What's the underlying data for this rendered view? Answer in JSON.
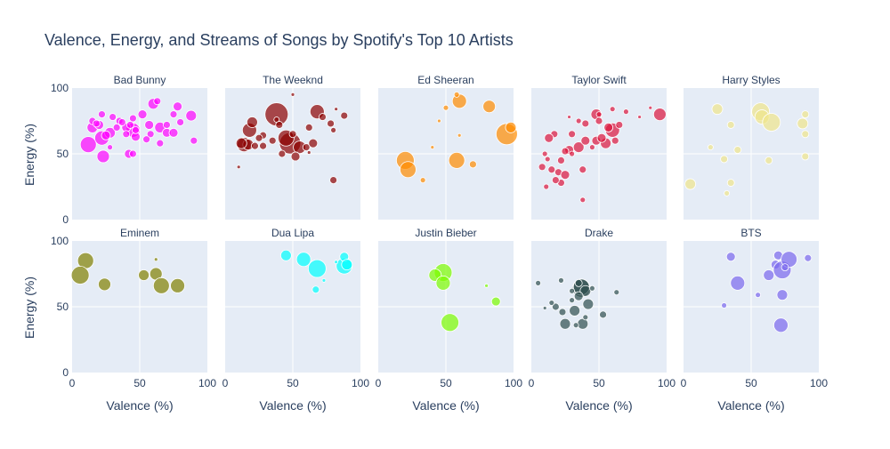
{
  "chart_data": {
    "type": "scatter",
    "title": "Valence, Energy, and Streams of Songs by Spotify's Top 10 Artists",
    "xlabel": "Valence (%)",
    "ylabel": "Energy (%)",
    "xlim": [
      0,
      100
    ],
    "ylim": [
      0,
      100
    ],
    "x_ticks": [
      "0",
      "50",
      "100"
    ],
    "y_ticks": [
      "0",
      "50",
      "100"
    ],
    "grid": true,
    "panels": [
      {
        "name": "Bad Bunny",
        "color": "#ff00ff",
        "points": [
          [
            12,
            57,
            9
          ],
          [
            15,
            70,
            6
          ],
          [
            22,
            62,
            8
          ],
          [
            28,
            66,
            6
          ],
          [
            45,
            68,
            8
          ],
          [
            47,
            63,
            5
          ],
          [
            58,
            65,
            4
          ],
          [
            65,
            70,
            6
          ],
          [
            70,
            66,
            5
          ],
          [
            88,
            79,
            6
          ],
          [
            23,
            48,
            7
          ],
          [
            42,
            50,
            5
          ],
          [
            45,
            50,
            4
          ],
          [
            15,
            75,
            4
          ],
          [
            20,
            72,
            5
          ],
          [
            18,
            73,
            4
          ],
          [
            25,
            64,
            5
          ],
          [
            35,
            75,
            4
          ],
          [
            40,
            70,
            5
          ],
          [
            52,
            80,
            5
          ],
          [
            60,
            88,
            6
          ],
          [
            63,
            90,
            4
          ],
          [
            75,
            80,
            4
          ],
          [
            78,
            86,
            5
          ],
          [
            80,
            74,
            4
          ],
          [
            90,
            60,
            4
          ],
          [
            75,
            66,
            5
          ],
          [
            57,
            72,
            5
          ],
          [
            47,
            68,
            4
          ],
          [
            40,
            65,
            4
          ],
          [
            33,
            70,
            4
          ],
          [
            30,
            78,
            4
          ],
          [
            65,
            58,
            4
          ],
          [
            55,
            61,
            4
          ],
          [
            43,
            72,
            4
          ],
          [
            28,
            55,
            3
          ],
          [
            22,
            80,
            4
          ],
          [
            70,
            72,
            4
          ],
          [
            45,
            77,
            4
          ],
          [
            37,
            74,
            4
          ]
        ]
      },
      {
        "name": "The Weeknd",
        "color": "#8b0000",
        "points": [
          [
            38,
            80,
            13
          ],
          [
            48,
            58,
            12
          ],
          [
            45,
            62,
            9
          ],
          [
            55,
            55,
            7
          ],
          [
            14,
            57,
            8
          ],
          [
            18,
            68,
            8
          ],
          [
            17,
            57,
            6
          ],
          [
            20,
            74,
            6
          ],
          [
            28,
            64,
            4
          ],
          [
            38,
            76,
            3
          ],
          [
            40,
            72,
            4
          ],
          [
            62,
            70,
            4
          ],
          [
            80,
            30,
            4
          ],
          [
            88,
            79,
            4
          ],
          [
            10,
            40,
            2
          ],
          [
            60,
            55,
            4
          ],
          [
            65,
            58,
            5
          ],
          [
            68,
            82,
            8
          ],
          [
            72,
            78,
            4
          ],
          [
            12,
            58,
            6
          ],
          [
            22,
            56,
            4
          ],
          [
            25,
            62,
            4
          ],
          [
            35,
            60,
            4
          ],
          [
            52,
            48,
            5
          ],
          [
            50,
            65,
            4
          ],
          [
            62,
            51,
            2
          ],
          [
            50,
            95,
            2
          ],
          [
            82,
            84,
            2
          ],
          [
            80,
            68,
            3
          ],
          [
            42,
            50,
            4
          ],
          [
            28,
            56,
            4
          ],
          [
            78,
            73,
            4
          ]
        ]
      },
      {
        "name": "Ed Sheeran",
        "color": "#ff8c00",
        "points": [
          [
            20,
            45,
            10
          ],
          [
            22,
            38,
            9
          ],
          [
            58,
            45,
            9
          ],
          [
            60,
            90,
            8
          ],
          [
            82,
            86,
            7
          ],
          [
            95,
            65,
            12
          ],
          [
            98,
            70,
            6
          ],
          [
            70,
            42,
            4
          ],
          [
            50,
            85,
            3
          ],
          [
            33,
            30,
            3
          ],
          [
            45,
            75,
            2
          ],
          [
            60,
            64,
            2
          ],
          [
            58,
            95,
            3
          ],
          [
            40,
            55,
            2
          ]
        ]
      },
      {
        "name": "Taylor Swift",
        "color": "#dc143c",
        "points": [
          [
            95,
            80,
            7
          ],
          [
            60,
            68,
            8
          ],
          [
            55,
            58,
            6
          ],
          [
            48,
            60,
            5
          ],
          [
            52,
            62,
            5
          ],
          [
            48,
            80,
            6
          ],
          [
            57,
            70,
            5
          ],
          [
            65,
            72,
            4
          ],
          [
            35,
            55,
            6
          ],
          [
            28,
            53,
            5
          ],
          [
            25,
            52,
            4
          ],
          [
            22,
            45,
            4
          ],
          [
            20,
            36,
            4
          ],
          [
            15,
            38,
            4
          ],
          [
            12,
            46,
            3
          ],
          [
            11,
            25,
            3
          ],
          [
            8,
            40,
            4
          ],
          [
            17,
            65,
            4
          ],
          [
            13,
            62,
            5
          ],
          [
            25,
            34,
            5
          ],
          [
            22,
            28,
            4
          ],
          [
            18,
            30,
            4
          ],
          [
            30,
            65,
            4
          ],
          [
            38,
            38,
            4
          ],
          [
            40,
            60,
            5
          ],
          [
            40,
            73,
            4
          ],
          [
            50,
            75,
            4
          ],
          [
            62,
            60,
            4
          ],
          [
            60,
            84,
            3
          ],
          [
            70,
            82,
            3
          ],
          [
            80,
            78,
            2
          ],
          [
            88,
            85,
            2
          ],
          [
            50,
            80,
            3
          ],
          [
            45,
            55,
            3
          ],
          [
            35,
            75,
            3
          ],
          [
            30,
            50,
            3
          ],
          [
            28,
            78,
            2
          ],
          [
            10,
            50,
            3
          ],
          [
            38,
            15,
            3
          ]
        ]
      },
      {
        "name": "Harry Styles",
        "color": "#f0e68c",
        "points": [
          [
            57,
            82,
            10
          ],
          [
            58,
            78,
            8
          ],
          [
            65,
            74,
            10
          ],
          [
            88,
            73,
            6
          ],
          [
            90,
            80,
            4
          ],
          [
            90,
            65,
            4
          ],
          [
            90,
            48,
            4
          ],
          [
            25,
            84,
            6
          ],
          [
            5,
            27,
            6
          ],
          [
            35,
            72,
            4
          ],
          [
            30,
            46,
            4
          ],
          [
            40,
            53,
            4
          ],
          [
            63,
            45,
            4
          ],
          [
            35,
            28,
            4
          ],
          [
            32,
            20,
            3
          ],
          [
            20,
            55,
            3
          ]
        ]
      },
      {
        "name": "Eminem",
        "color": "#808000",
        "points": [
          [
            10,
            85,
            9
          ],
          [
            6,
            74,
            10
          ],
          [
            24,
            67,
            7
          ],
          [
            53,
            74,
            6
          ],
          [
            62,
            75,
            7
          ],
          [
            66,
            66,
            9
          ],
          [
            78,
            66,
            8
          ],
          [
            62,
            86,
            2
          ]
        ]
      },
      {
        "name": "Dua Lipa",
        "color": "#00ffff",
        "points": [
          [
            45,
            89,
            6
          ],
          [
            58,
            86,
            8
          ],
          [
            68,
            79,
            10
          ],
          [
            67,
            63,
            4
          ],
          [
            88,
            81,
            9
          ],
          [
            88,
            88,
            5
          ],
          [
            90,
            82,
            6
          ],
          [
            82,
            84,
            2
          ],
          [
            73,
            70,
            2
          ]
        ]
      },
      {
        "name": "Justin Bieber",
        "color": "#7cfc00",
        "points": [
          [
            48,
            76,
            10
          ],
          [
            42,
            74,
            7
          ],
          [
            48,
            68,
            8
          ],
          [
            53,
            38,
            10
          ],
          [
            87,
            54,
            5
          ],
          [
            80,
            66,
            2
          ]
        ]
      },
      {
        "name": "Drake",
        "color": "#2f4f4f",
        "points": [
          [
            37,
            64,
            10
          ],
          [
            37,
            65,
            9
          ],
          [
            40,
            62,
            6
          ],
          [
            35,
            58,
            5
          ],
          [
            32,
            47,
            6
          ],
          [
            25,
            37,
            6
          ],
          [
            38,
            37,
            6
          ],
          [
            42,
            52,
            6
          ],
          [
            23,
            46,
            4
          ],
          [
            18,
            50,
            4
          ],
          [
            22,
            70,
            3
          ],
          [
            30,
            62,
            3
          ],
          [
            35,
            68,
            4
          ],
          [
            45,
            64,
            3
          ],
          [
            53,
            44,
            4
          ],
          [
            63,
            61,
            3
          ],
          [
            10,
            49,
            2
          ],
          [
            15,
            53,
            3
          ],
          [
            5,
            68,
            3
          ],
          [
            33,
            36,
            3
          ],
          [
            40,
            42,
            3
          ],
          [
            30,
            55,
            3
          ]
        ]
      },
      {
        "name": "BTS",
        "color": "#7b68ee",
        "points": [
          [
            35,
            88,
            5
          ],
          [
            40,
            68,
            8
          ],
          [
            55,
            59,
            3
          ],
          [
            63,
            74,
            6
          ],
          [
            68,
            82,
            5
          ],
          [
            70,
            89,
            5
          ],
          [
            72,
            36,
            8
          ],
          [
            73,
            59,
            6
          ],
          [
            73,
            78,
            10
          ],
          [
            78,
            86,
            9
          ],
          [
            92,
            87,
            4
          ],
          [
            30,
            51,
            3
          ],
          [
            75,
            80,
            4
          ]
        ]
      }
    ]
  }
}
